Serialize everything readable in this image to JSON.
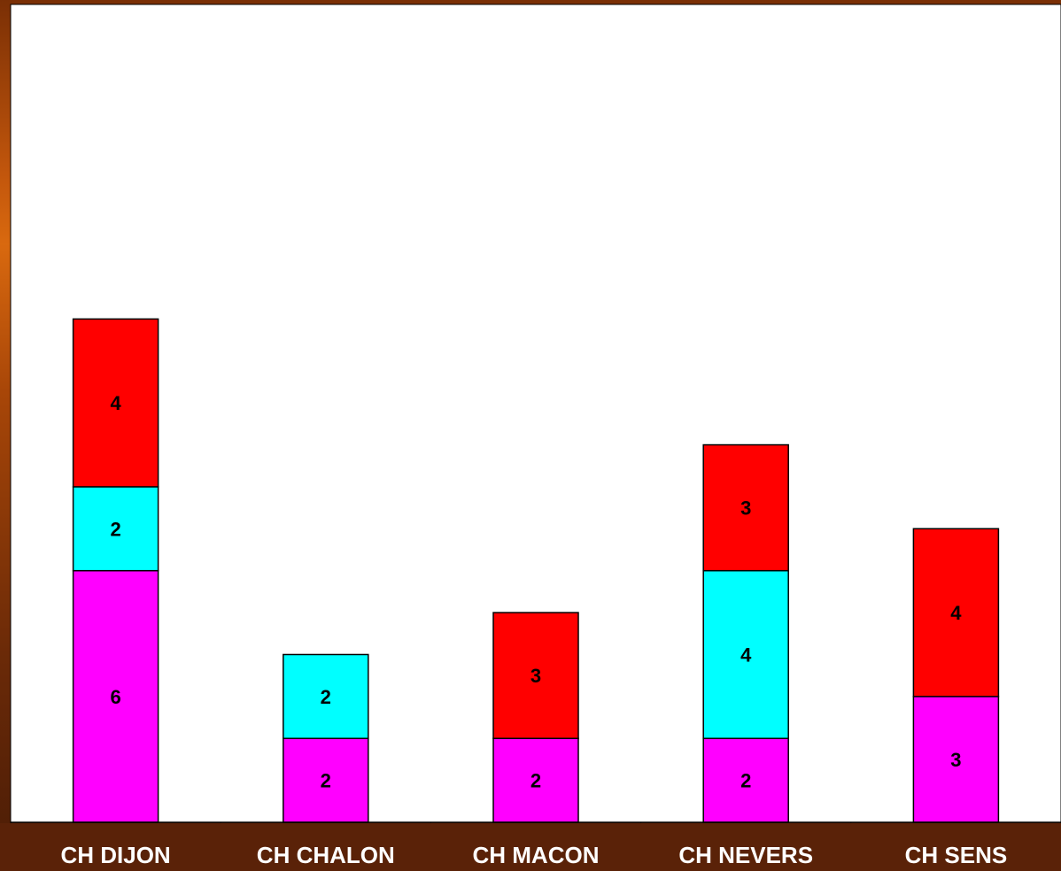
{
  "chart_data": {
    "type": "bar",
    "stacked": true,
    "categories": [
      "CH DIJON",
      "CH CHALON",
      "CH MACON",
      "CH NEVERS",
      "CH SENS"
    ],
    "series": [
      {
        "color": "#ff00ff",
        "values": [
          6,
          2,
          2,
          2,
          3
        ]
      },
      {
        "color": "#00ffff",
        "values": [
          2,
          2,
          0,
          4,
          0
        ]
      },
      {
        "color": "#ff0000",
        "values": [
          4,
          0,
          3,
          3,
          4
        ]
      }
    ],
    "ylim": [
      0,
      19.5
    ],
    "grid": false,
    "legend": "none",
    "data_labels": true
  },
  "colors": {
    "plot_background": "#ffffff",
    "category_band": "#5a2208",
    "category_text": "#ffffff",
    "bar_border": "#000000",
    "label_text": "#000000"
  }
}
